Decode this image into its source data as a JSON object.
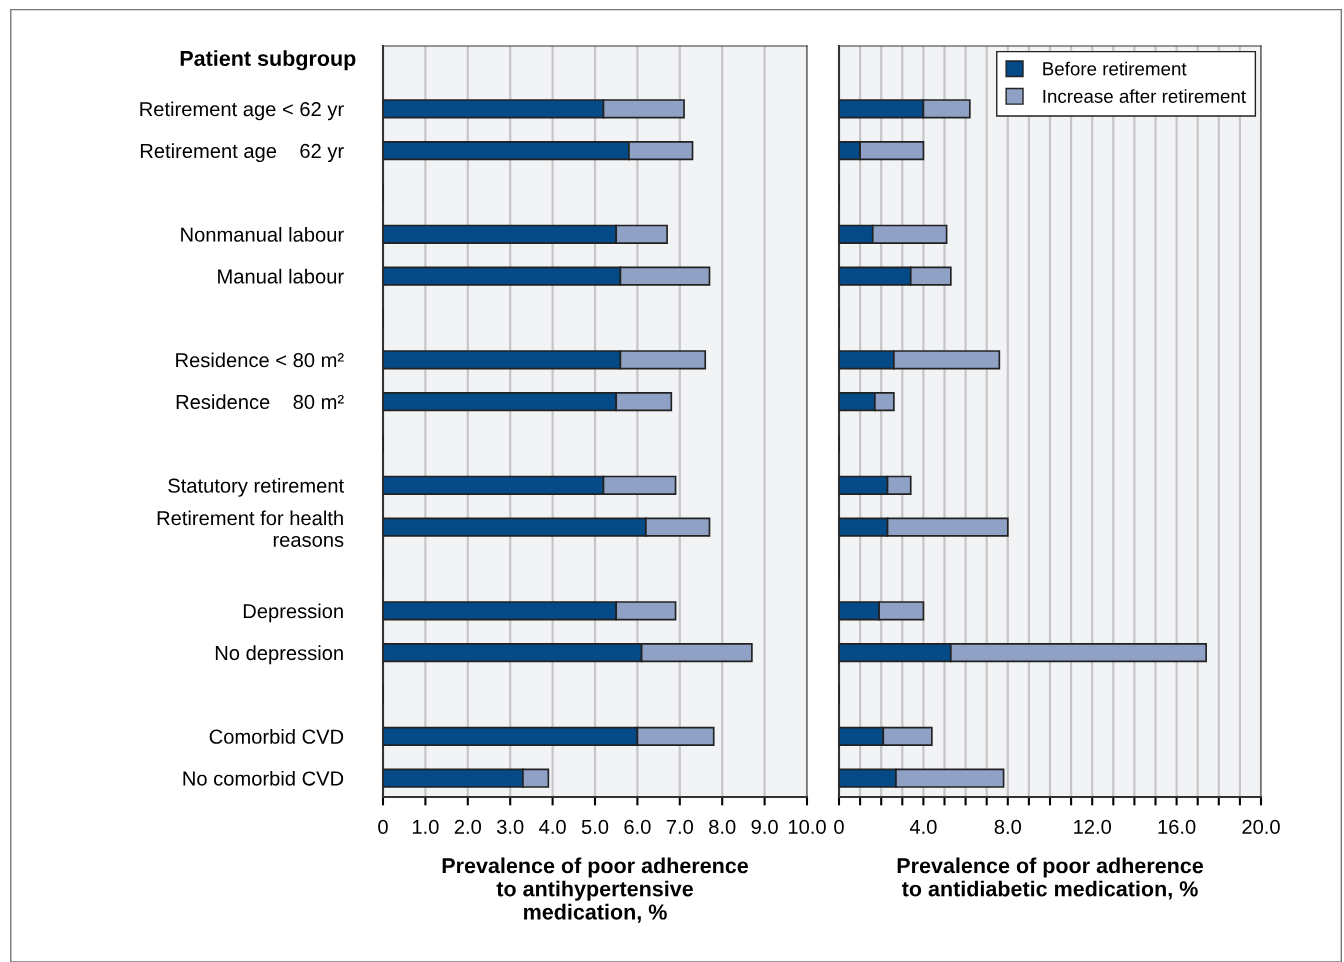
{
  "chart_data": [
    {
      "type": "bar",
      "orientation": "horizontal",
      "stacked": true,
      "ylabel": "Patient subgroup",
      "xlabel": "Prevalence of poor adherence\nto antihypertensive\nmedication, %",
      "categories": [
        "Retirement age < 62 yr",
        "Retirement age    62 yr",
        null,
        "Nonmanual labour",
        "Manual labour",
        null,
        "Residence < 80 m²",
        "Residence    80 m²",
        null,
        "Statutory retirement",
        "Retirement for health\nreasons",
        null,
        "Depression",
        "No depression",
        null,
        "Comorbid CVD",
        "No comorbid CVD"
      ],
      "series": [
        {
          "color": "#034a87",
          "values": [
            5.2,
            5.8,
            null,
            5.5,
            5.6,
            null,
            5.6,
            5.5,
            null,
            5.2,
            6.2,
            null,
            5.5,
            6.1,
            null,
            6.0,
            3.3
          ]
        },
        {
          "color": "#8fa1c4",
          "values": [
            1.9,
            1.5,
            null,
            1.2,
            2.1,
            null,
            2.0,
            1.3,
            null,
            1.7,
            1.5,
            null,
            1.4,
            2.6,
            null,
            1.8,
            0.6
          ]
        }
      ],
      "xlim": [
        0,
        10
      ],
      "xticks": [
        0,
        {
          "value": 1,
          "label": "1.0"
        },
        {
          "value": 2,
          "label": "2.0"
        },
        {
          "value": 3,
          "label": "3.0"
        },
        {
          "value": 4,
          "label": "4.0"
        },
        {
          "value": 5,
          "label": "5.0"
        },
        {
          "value": 6,
          "label": "6.0"
        },
        {
          "value": 7,
          "label": "7.0"
        },
        {
          "value": 8,
          "label": "8.0"
        },
        {
          "value": 9,
          "label": "9.0"
        },
        {
          "value": 10,
          "label": "10.0"
        }
      ],
      "grid": "x"
    },
    {
      "type": "bar",
      "orientation": "horizontal",
      "stacked": true,
      "xlabel": "Prevalence of poor adherence\nto antidiabetic medication, %",
      "categories": [
        null,
        null,
        null,
        null,
        null,
        null,
        null,
        null,
        null,
        null,
        null,
        null,
        null,
        null,
        null,
        null,
        null
      ],
      "series": [
        {
          "name": "Before retirement",
          "color": "#034a87",
          "values": [
            4.0,
            1.0,
            null,
            1.6,
            3.4,
            null,
            2.6,
            1.7,
            null,
            2.3,
            2.3,
            null,
            1.9,
            5.3,
            null,
            2.1,
            2.7
          ]
        },
        {
          "name": "Increase after retirement",
          "color": "#8fa1c4",
          "values": [
            2.2,
            3.0,
            null,
            3.5,
            1.9,
            null,
            5.0,
            0.9,
            null,
            1.1,
            5.7,
            null,
            2.1,
            12.1,
            null,
            2.3,
            5.1
          ]
        }
      ],
      "xlim": [
        0,
        20
      ],
      "xticks": [
        0,
        {
          "value": 1,
          "label": null
        },
        {
          "value": 2,
          "label": null
        },
        {
          "value": 3,
          "label": null
        },
        {
          "value": 4,
          "label": "4.0"
        },
        {
          "value": 5,
          "label": null
        },
        {
          "value": 6,
          "label": null
        },
        {
          "value": 7,
          "label": null
        },
        {
          "value": 8,
          "label": "8.0"
        },
        {
          "value": 9,
          "label": null
        },
        {
          "value": 10,
          "label": null
        },
        {
          "value": 11,
          "label": null
        },
        {
          "value": 12,
          "label": "12.0"
        },
        {
          "value": 13,
          "label": null
        },
        {
          "value": 14,
          "label": null
        },
        {
          "value": 15,
          "label": null
        },
        {
          "value": 16,
          "label": "16.0"
        },
        {
          "value": 17,
          "label": null
        },
        {
          "value": 18,
          "label": null
        },
        {
          "value": 19,
          "label": null
        },
        {
          "value": 20,
          "label": "20.0"
        }
      ],
      "grid": "x",
      "legend": "top right",
      "tick_labels": "x"
    }
  ]
}
